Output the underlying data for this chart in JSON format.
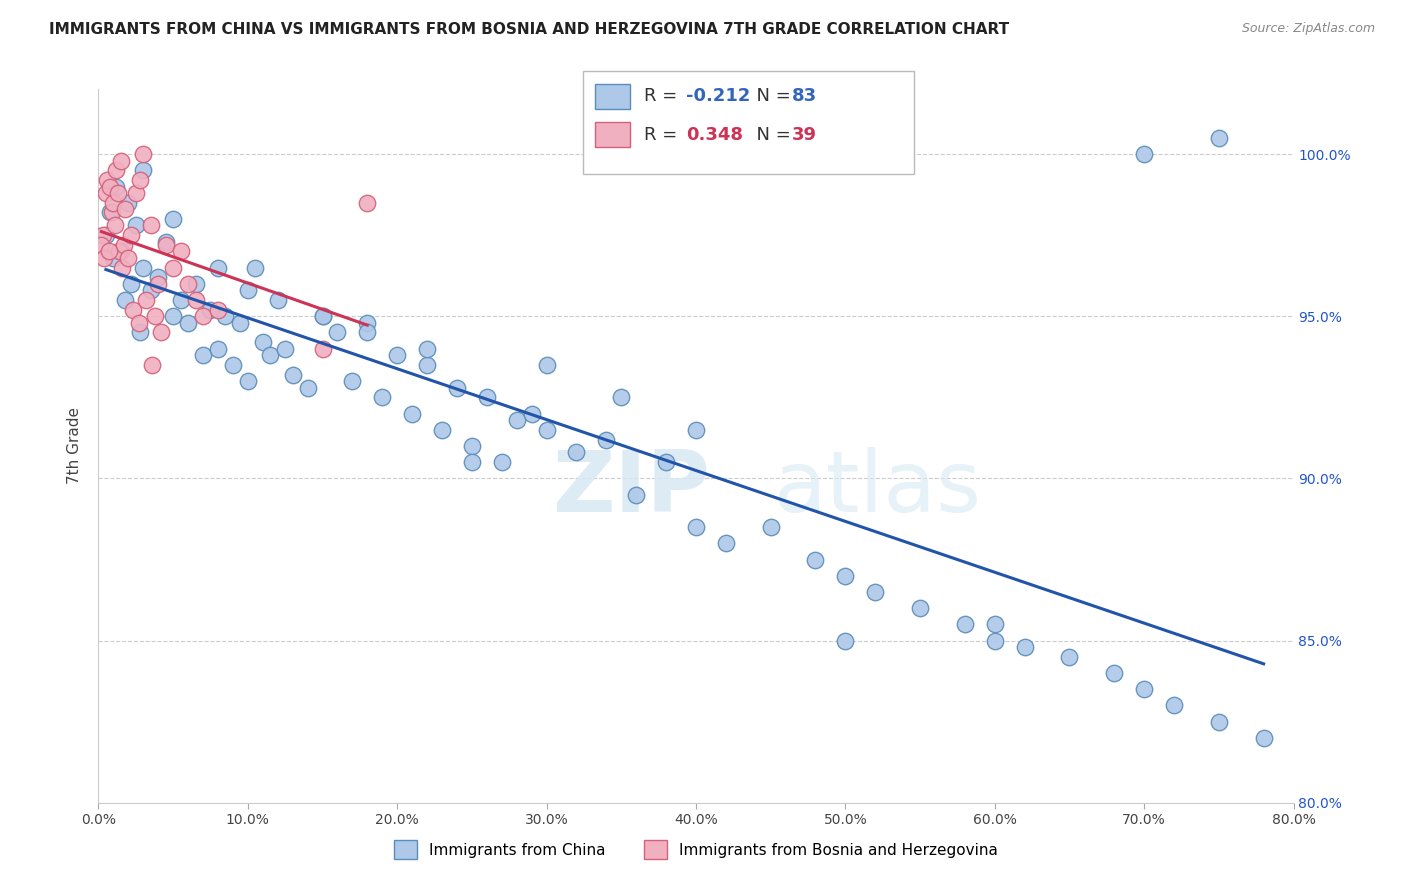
{
  "title": "IMMIGRANTS FROM CHINA VS IMMIGRANTS FROM BOSNIA AND HERZEGOVINA 7TH GRADE CORRELATION CHART",
  "source": "Source: ZipAtlas.com",
  "xlabel_blue": "Immigrants from China",
  "xlabel_pink": "Immigrants from Bosnia and Herzegovina",
  "ylabel": "7th Grade",
  "R_blue": -0.212,
  "N_blue": 83,
  "R_pink": 0.348,
  "N_pink": 39,
  "xlim": [
    0.0,
    80.0
  ],
  "ylim": [
    80.0,
    102.0
  ],
  "yticks": [
    80.0,
    85.0,
    90.0,
    95.0,
    100.0
  ],
  "xticks": [
    0.0,
    10.0,
    20.0,
    30.0,
    40.0,
    50.0,
    60.0,
    70.0,
    80.0
  ],
  "blue_color": "#adc8e8",
  "blue_edge": "#5b8db8",
  "pink_color": "#f0b0c0",
  "pink_edge": "#d4607a",
  "blue_line_color": "#2255aa",
  "pink_line_color": "#cc3355",
  "watermark_color": "#d8e8f4",
  "blue_x": [
    0.5,
    0.8,
    1.0,
    1.2,
    1.5,
    1.8,
    2.0,
    2.2,
    2.5,
    2.8,
    3.0,
    3.5,
    4.0,
    4.5,
    5.0,
    5.5,
    6.0,
    6.5,
    7.0,
    7.5,
    8.0,
    8.5,
    9.0,
    9.5,
    10.0,
    10.5,
    11.0,
    11.5,
    12.0,
    12.5,
    13.0,
    14.0,
    15.0,
    16.0,
    17.0,
    18.0,
    19.0,
    20.0,
    21.0,
    22.0,
    23.0,
    24.0,
    25.0,
    26.0,
    27.0,
    28.0,
    29.0,
    30.0,
    32.0,
    34.0,
    36.0,
    38.0,
    40.0,
    42.0,
    45.0,
    48.0,
    50.0,
    52.0,
    55.0,
    58.0,
    60.0,
    62.0,
    65.0,
    68.0,
    70.0,
    72.0,
    75.0,
    78.0,
    3.0,
    5.0,
    8.0,
    10.0,
    15.0,
    18.0,
    22.0,
    25.0,
    30.0,
    35.0,
    40.0,
    50.0,
    60.0,
    70.0,
    75.0
  ],
  "blue_y": [
    97.5,
    98.2,
    96.8,
    99.0,
    97.0,
    95.5,
    98.5,
    96.0,
    97.8,
    94.5,
    96.5,
    95.8,
    96.2,
    97.3,
    95.0,
    95.5,
    94.8,
    96.0,
    93.8,
    95.2,
    94.0,
    95.0,
    93.5,
    94.8,
    93.0,
    96.5,
    94.2,
    93.8,
    95.5,
    94.0,
    93.2,
    92.8,
    95.0,
    94.5,
    93.0,
    94.8,
    92.5,
    93.8,
    92.0,
    93.5,
    91.5,
    92.8,
    91.0,
    92.5,
    90.5,
    91.8,
    92.0,
    91.5,
    90.8,
    91.2,
    89.5,
    90.5,
    88.5,
    88.0,
    88.5,
    87.5,
    87.0,
    86.5,
    86.0,
    85.5,
    85.0,
    84.8,
    84.5,
    84.0,
    83.5,
    83.0,
    82.5,
    82.0,
    99.5,
    98.0,
    96.5,
    95.8,
    95.0,
    94.5,
    94.0,
    90.5,
    93.5,
    92.5,
    91.5,
    85.0,
    85.5,
    100.0,
    100.5
  ],
  "pink_x": [
    0.3,
    0.5,
    0.6,
    0.8,
    0.9,
    1.0,
    1.1,
    1.2,
    1.3,
    1.4,
    1.5,
    1.6,
    1.7,
    1.8,
    2.0,
    2.2,
    2.3,
    2.5,
    2.7,
    2.8,
    3.0,
    3.2,
    3.5,
    3.6,
    3.8,
    4.0,
    4.2,
    4.5,
    5.0,
    5.5,
    6.0,
    6.5,
    7.0,
    8.0,
    0.2,
    0.4,
    0.7,
    15.0,
    18.0
  ],
  "pink_y": [
    97.5,
    98.8,
    99.2,
    99.0,
    98.2,
    98.5,
    97.8,
    99.5,
    98.8,
    97.0,
    99.8,
    96.5,
    97.2,
    98.3,
    96.8,
    97.5,
    95.2,
    98.8,
    94.8,
    99.2,
    100.0,
    95.5,
    97.8,
    93.5,
    95.0,
    96.0,
    94.5,
    97.2,
    96.5,
    97.0,
    96.0,
    95.5,
    95.0,
    95.2,
    97.2,
    96.8,
    97.0,
    94.0,
    98.5
  ]
}
